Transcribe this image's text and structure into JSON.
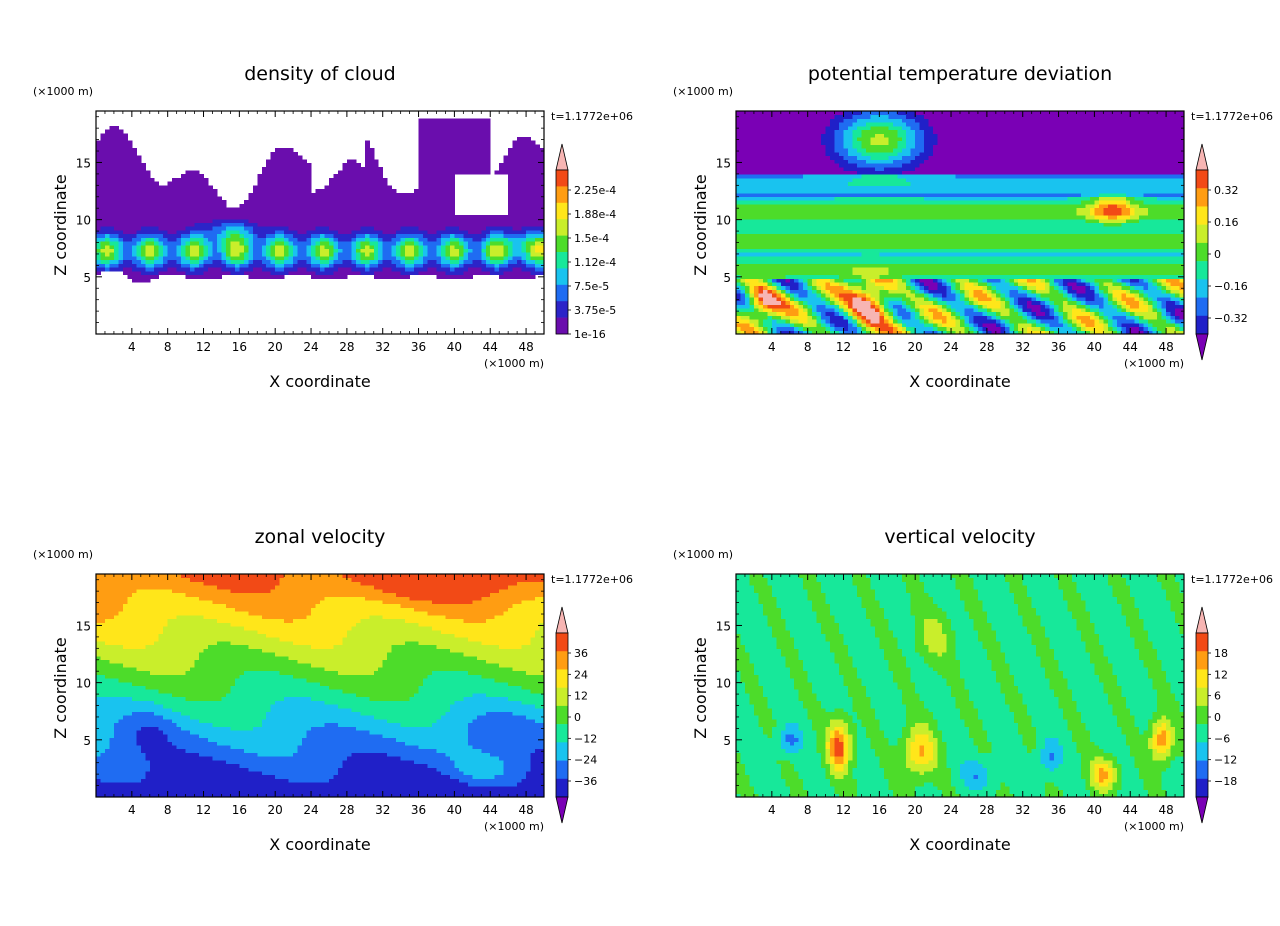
{
  "chart_data": [
    {
      "type": "heatmap",
      "title": "density of cloud",
      "xlabel": "X coordinate",
      "ylabel": "Z coordinate",
      "x_unit": "(×1000 m)",
      "y_unit": "(×1000 m)",
      "time_label": "t=1.1772e+06",
      "xlim": [
        0,
        50
      ],
      "ylim": [
        0,
        19.5
      ],
      "x_ticks": [
        "4",
        "8",
        "12",
        "16",
        "20",
        "24",
        "28",
        "32",
        "36",
        "40",
        "44",
        "48"
      ],
      "y_ticks": [
        "5",
        "10",
        "15"
      ],
      "colorbar_labels": [
        "2.25e-4",
        "1.88e-4",
        "1.5e-4",
        "1.12e-4",
        "7.5e-5",
        "3.75e-5",
        "1e-16"
      ],
      "colors": [
        "#6a0dad",
        "#2c24c8",
        "#1f6cf2",
        "#19c3ef",
        "#17e89a",
        "#4ddc2a",
        "#c9ee2b",
        "#ffe61a",
        "#ff9d12",
        "#f24a16",
        "#f7b5b3"
      ],
      "field_kind": "cloud"
    },
    {
      "type": "heatmap",
      "title": "potential temperature deviation",
      "xlabel": "X coordinate",
      "ylabel": "Z coordinate",
      "x_unit": "(×1000 m)",
      "y_unit": "(×1000 m)",
      "time_label": "t=1.1772e+06",
      "xlim": [
        0,
        50
      ],
      "ylim": [
        0,
        19.5
      ],
      "x_ticks": [
        "4",
        "8",
        "12",
        "16",
        "20",
        "24",
        "28",
        "32",
        "36",
        "40",
        "44",
        "48"
      ],
      "y_ticks": [
        "5",
        "10",
        "15"
      ],
      "colorbar_labels": [
        "0.32",
        "0.16",
        "0",
        "−0.16",
        "−0.32"
      ],
      "colors": [
        "#7a00b5",
        "#2020c8",
        "#1f6cf2",
        "#19c3ef",
        "#17e89a",
        "#4ddc2a",
        "#c9ee2b",
        "#ffe61a",
        "#ff9d12",
        "#f24a16",
        "#f7b5b3"
      ],
      "field_kind": "theta"
    },
    {
      "type": "heatmap",
      "title": "zonal velocity",
      "xlabel": "X coordinate",
      "ylabel": "Z coordinate",
      "x_unit": "(×1000 m)",
      "y_unit": "(×1000 m)",
      "time_label": "t=1.1772e+06",
      "xlim": [
        0,
        50
      ],
      "ylim": [
        0,
        19.5
      ],
      "x_ticks": [
        "4",
        "8",
        "12",
        "16",
        "20",
        "24",
        "28",
        "32",
        "36",
        "40",
        "44",
        "48"
      ],
      "y_ticks": [
        "5",
        "10",
        "15"
      ],
      "colorbar_labels": [
        "36",
        "24",
        "12",
        "0",
        "−12",
        "−24",
        "−36"
      ],
      "colors": [
        "#7a00b5",
        "#2020c8",
        "#1f6cf2",
        "#19c3ef",
        "#17e89a",
        "#4ddc2a",
        "#c9ee2b",
        "#ffe61a",
        "#ff9d12",
        "#f24a16",
        "#f7b5b3"
      ],
      "field_kind": "zonal"
    },
    {
      "type": "heatmap",
      "title": "vertical velocity",
      "xlabel": "X coordinate",
      "ylabel": "Z coordinate",
      "x_unit": "(×1000 m)",
      "y_unit": "(×1000 m)",
      "time_label": "t=1.1772e+06",
      "xlim": [
        0,
        50
      ],
      "ylim": [
        0,
        19.5
      ],
      "x_ticks": [
        "4",
        "8",
        "12",
        "16",
        "20",
        "24",
        "28",
        "32",
        "36",
        "40",
        "44",
        "48"
      ],
      "y_ticks": [
        "5",
        "10",
        "15"
      ],
      "colorbar_labels": [
        "18",
        "12",
        "6",
        "0",
        "−6",
        "−12",
        "−18"
      ],
      "colors": [
        "#7a00b5",
        "#2020c8",
        "#1f6cf2",
        "#19c3ef",
        "#17e89a",
        "#4ddc2a",
        "#c9ee2b",
        "#ffe61a",
        "#ff9d12",
        "#f24a16",
        "#f7b5b3"
      ],
      "field_kind": "vertical"
    }
  ]
}
